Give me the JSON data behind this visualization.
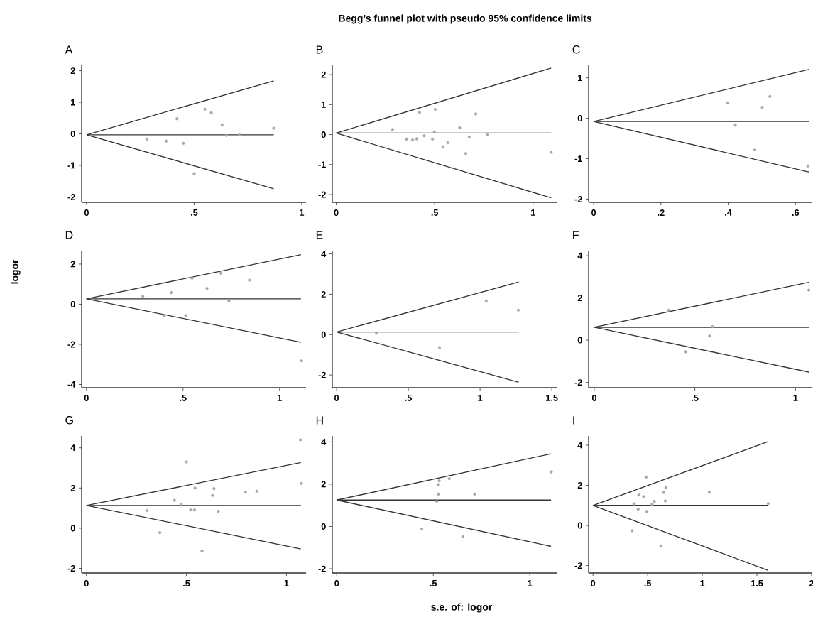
{
  "chart_data": [
    {
      "type": "scatter",
      "title": "A",
      "xlim": [
        -0.023,
        1.02
      ],
      "ylim": [
        -2.17,
        2.17
      ],
      "xticks": [
        0,
        {
          "value": 0.5,
          "label": ".5"
        },
        1
      ],
      "yticks": [
        -2,
        -1,
        0,
        1,
        2
      ],
      "series": [
        {
          "marker": "circle",
          "color": "#a8a8a8",
          "x": [
            0.28,
            0.37,
            0.42,
            0.45,
            0.5,
            0.55,
            0.58,
            0.63,
            0.65,
            0.71,
            0.87
          ],
          "values": [
            -0.17,
            -0.23,
            0.48,
            -0.3,
            -1.26,
            0.78,
            0.67,
            0.28,
            -0.05,
            -0.03,
            0.18
          ]
        },
        {
          "type": "line",
          "color": "#333333",
          "x": [
            0,
            0.87
          ],
          "values": [
            -0.03,
            1.68
          ]
        },
        {
          "type": "line",
          "color": "#333333",
          "x": [
            0,
            0.87
          ],
          "values": [
            -0.03,
            -0.03
          ]
        },
        {
          "type": "line",
          "color": "#333333",
          "x": [
            0,
            0.87
          ],
          "values": [
            -0.03,
            -1.74
          ]
        }
      ]
    },
    {
      "type": "scatter",
      "title": "B",
      "annotations": [
        "Begg’s funnel plot with pseudo 95% confidence limits"
      ],
      "xlim": [
        -0.02,
        1.12
      ],
      "ylim": [
        -2.26,
        2.31
      ],
      "xticks": [
        0,
        {
          "value": 0.5,
          "label": ".5"
        },
        1
      ],
      "yticks": [
        -2,
        -1,
        0,
        1,
        2
      ],
      "series": [
        {
          "marker": "circle",
          "color": "#a8a8a8",
          "x": [
            0.286,
            0.357,
            0.388,
            0.409,
            0.423,
            0.447,
            0.489,
            0.499,
            0.503,
            0.542,
            0.567,
            0.627,
            0.658,
            0.676,
            0.709,
            0.768,
            1.092
          ],
          "values": [
            0.17,
            -0.15,
            -0.18,
            -0.14,
            0.74,
            -0.04,
            -0.15,
            0.09,
            0.84,
            -0.41,
            -0.27,
            0.23,
            -0.63,
            -0.08,
            0.69,
            0.0,
            -0.59
          ]
        },
        {
          "type": "line",
          "color": "#333333",
          "x": [
            0,
            1.092
          ],
          "values": [
            0.05,
            2.22
          ]
        },
        {
          "type": "line",
          "color": "#333333",
          "x": [
            0,
            1.092
          ],
          "values": [
            0.05,
            0.05
          ]
        },
        {
          "type": "line",
          "color": "#333333",
          "x": [
            0,
            1.092
          ],
          "values": [
            0.05,
            -2.11
          ]
        }
      ]
    },
    {
      "type": "scatter",
      "title": "C",
      "xlim": [
        -0.015,
        0.648
      ],
      "ylim": [
        -2.08,
        1.31
      ],
      "xticks": [
        0,
        {
          "value": 0.2,
          "label": ".2"
        },
        {
          "value": 0.4,
          "label": ".4"
        },
        {
          "value": 0.6,
          "label": ".6"
        }
      ],
      "yticks": [
        -2,
        -1,
        0,
        1
      ],
      "series": [
        {
          "marker": "circle",
          "color": "#a8a8a8",
          "x": [
            0.398,
            0.421,
            0.479,
            0.501,
            0.524,
            0.637
          ],
          "values": [
            0.38,
            -0.17,
            -0.78,
            0.27,
            0.54,
            -1.18
          ]
        },
        {
          "type": "line",
          "color": "#333333",
          "x": [
            0,
            0.641
          ],
          "values": [
            -0.08,
            1.21
          ]
        },
        {
          "type": "line",
          "color": "#333333",
          "x": [
            0,
            0.641
          ],
          "values": [
            -0.08,
            -0.08
          ]
        },
        {
          "type": "line",
          "color": "#333333",
          "x": [
            0,
            0.641
          ],
          "values": [
            -0.08,
            -1.33
          ]
        }
      ]
    },
    {
      "type": "scatter",
      "title": "D",
      "ylabel": "logor",
      "xlim": [
        -0.025,
        1.137
      ],
      "ylim": [
        -4.16,
        2.67
      ],
      "xticks": [
        0,
        {
          "value": 0.5,
          "label": ".5"
        },
        1
      ],
      "yticks": [
        -4,
        -2,
        0,
        2
      ],
      "series": [
        {
          "marker": "circle",
          "color": "#a8a8a8",
          "x": [
            0.292,
            0.403,
            0.439,
            0.514,
            0.547,
            0.624,
            0.696,
            0.738,
            0.844,
            1.114
          ],
          "values": [
            0.4,
            -0.58,
            0.58,
            -0.56,
            1.3,
            0.79,
            1.55,
            0.15,
            1.2,
            -2.82
          ]
        },
        {
          "type": "line",
          "color": "#333333",
          "x": [
            0,
            1.111
          ],
          "values": [
            0.27,
            2.47
          ]
        },
        {
          "type": "line",
          "color": "#333333",
          "x": [
            0,
            1.111
          ],
          "values": [
            0.27,
            0.27
          ]
        },
        {
          "type": "line",
          "color": "#333333",
          "x": [
            0,
            1.111
          ],
          "values": [
            0.27,
            -1.9
          ]
        }
      ]
    },
    {
      "type": "scatter",
      "title": "E",
      "xlim": [
        -0.03,
        1.534
      ],
      "ylim": [
        -2.63,
        4.16
      ],
      "xticks": [
        0,
        {
          "value": 0.5,
          "label": ".5"
        },
        1,
        1.5
      ],
      "yticks": [
        -2,
        0,
        2,
        4
      ],
      "series": [
        {
          "marker": "circle",
          "color": "#a8a8a8",
          "x": [
            0.278,
            0.718,
            1.043,
            1.267
          ],
          "values": [
            0.08,
            -0.64,
            1.67,
            1.21
          ]
        },
        {
          "type": "line",
          "color": "#333333",
          "x": [
            0,
            1.269
          ],
          "values": [
            0.13,
            2.61
          ]
        },
        {
          "type": "line",
          "color": "#333333",
          "x": [
            0,
            1.269
          ],
          "values": [
            0.13,
            0.13
          ]
        },
        {
          "type": "line",
          "color": "#333333",
          "x": [
            0,
            1.269
          ],
          "values": [
            0.13,
            -2.36
          ]
        }
      ]
    },
    {
      "type": "scatter",
      "title": "F",
      "xlim": [
        -0.028,
        1.08
      ],
      "ylim": [
        -2.25,
        4.24
      ],
      "xticks": [
        0,
        {
          "value": 0.5,
          "label": ".5"
        },
        1
      ],
      "yticks": [
        -2,
        0,
        2,
        4
      ],
      "series": [
        {
          "marker": "circle",
          "color": "#a8a8a8",
          "x": [
            0.37,
            0.455,
            0.573,
            0.588,
            1.066
          ],
          "values": [
            1.42,
            -0.55,
            0.2,
            0.64,
            2.37
          ]
        },
        {
          "type": "line",
          "color": "#333333",
          "x": [
            0,
            1.066
          ],
          "values": [
            0.61,
            2.74
          ]
        },
        {
          "type": "line",
          "color": "#333333",
          "x": [
            0,
            1.066
          ],
          "values": [
            0.61,
            0.61
          ]
        },
        {
          "type": "line",
          "color": "#333333",
          "x": [
            0,
            1.066
          ],
          "values": [
            0.61,
            -1.51
          ]
        }
      ]
    },
    {
      "type": "scatter",
      "title": "G",
      "xlim": [
        -0.024,
        1.098
      ],
      "ylim": [
        -2.23,
        4.59
      ],
      "xticks": [
        0,
        {
          "value": 0.5,
          "label": ".5"
        },
        1
      ],
      "yticks": [
        -2,
        0,
        2,
        4
      ],
      "series": [
        {
          "marker": "circle",
          "color": "#a8a8a8",
          "x": [
            0.302,
            0.367,
            0.44,
            0.474,
            0.5,
            0.521,
            0.54,
            0.543,
            0.578,
            0.63,
            0.638,
            0.659,
            0.795,
            0.852,
            1.07,
            1.075
          ],
          "values": [
            0.88,
            -0.22,
            1.39,
            1.19,
            3.3,
            0.91,
            0.91,
            2.0,
            -1.13,
            1.63,
            1.97,
            0.84,
            1.79,
            1.84,
            4.4,
            2.23
          ]
        },
        {
          "type": "line",
          "color": "#333333",
          "x": [
            0,
            1.072
          ],
          "values": [
            1.13,
            3.27
          ]
        },
        {
          "type": "line",
          "color": "#333333",
          "x": [
            0,
            1.072
          ],
          "values": [
            1.13,
            1.13
          ]
        },
        {
          "type": "line",
          "color": "#333333",
          "x": [
            0,
            1.072
          ],
          "values": [
            1.13,
            -1.03
          ]
        }
      ]
    },
    {
      "type": "scatter",
      "title": "H",
      "xlabel": "s.e. of: logor",
      "xlim": [
        -0.023,
        1.139
      ],
      "ylim": [
        -2.2,
        4.28
      ],
      "xticks": [
        0,
        {
          "value": 0.5,
          "label": ".5"
        },
        1
      ],
      "yticks": [
        -2,
        0,
        2,
        4
      ],
      "series": [
        {
          "marker": "circle",
          "color": "#a8a8a8",
          "x": [
            0.44,
            0.518,
            0.526,
            0.524,
            0.531,
            0.583,
            0.653,
            0.714,
            1.111
          ],
          "values": [
            -0.11,
            1.19,
            1.53,
            1.98,
            2.16,
            2.26,
            -0.48,
            1.53,
            2.58
          ]
        },
        {
          "type": "line",
          "color": "#333333",
          "x": [
            0,
            1.11
          ],
          "values": [
            1.25,
            3.44
          ]
        },
        {
          "type": "line",
          "color": "#333333",
          "x": [
            0,
            1.11
          ],
          "values": [
            1.25,
            1.25
          ]
        },
        {
          "type": "line",
          "color": "#333333",
          "x": [
            0,
            1.11
          ],
          "values": [
            1.25,
            -0.94
          ]
        }
      ]
    },
    {
      "type": "scatter",
      "title": "I",
      "xlim": [
        -0.04,
        2.0
      ],
      "ylim": [
        -2.37,
        4.46
      ],
      "xticks": [
        0,
        {
          "value": 0.5,
          "label": ".5"
        },
        1,
        1.5,
        2
      ],
      "yticks": [
        -2,
        0,
        2,
        4
      ],
      "series": [
        {
          "marker": "circle",
          "color": "#a8a8a8",
          "x": [
            0.358,
            0.376,
            0.413,
            0.42,
            0.463,
            0.486,
            0.491,
            0.539,
            0.562,
            0.622,
            0.647,
            0.661,
            0.667,
            1.064,
            1.603
          ],
          "values": [
            -0.26,
            1.08,
            0.81,
            1.52,
            1.44,
            2.41,
            0.7,
            1.05,
            1.2,
            -1.03,
            1.65,
            1.22,
            1.89,
            1.65,
            1.09
          ]
        },
        {
          "type": "line",
          "color": "#333333",
          "x": [
            0,
            1.599
          ],
          "values": [
            1.0,
            4.17
          ]
        },
        {
          "type": "line",
          "color": "#333333",
          "x": [
            0,
            1.599
          ],
          "values": [
            1.0,
            1.0
          ]
        },
        {
          "type": "line",
          "color": "#333333",
          "x": [
            0,
            1.599
          ],
          "values": [
            1.0,
            -2.23
          ]
        }
      ]
    }
  ]
}
